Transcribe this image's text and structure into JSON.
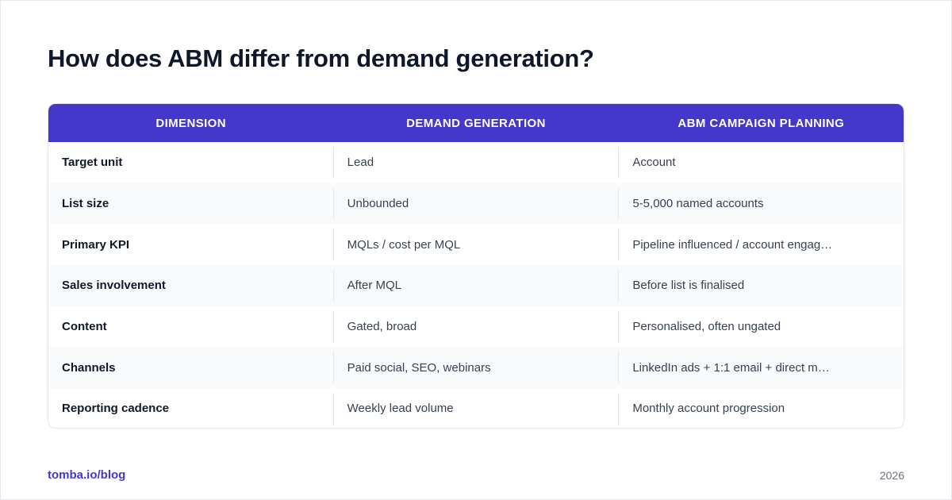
{
  "title": "How does ABM differ from demand generation?",
  "table": {
    "headers": [
      "DIMENSION",
      "DEMAND GENERATION",
      "ABM CAMPAIGN PLANNING"
    ],
    "rows": [
      [
        "Target unit",
        "Lead",
        "Account"
      ],
      [
        "List size",
        "Unbounded",
        "5-5,000 named accounts"
      ],
      [
        "Primary KPI",
        "MQLs / cost per MQL",
        "Pipeline influenced / account engag…"
      ],
      [
        "Sales involvement",
        "After MQL",
        "Before list is finalised"
      ],
      [
        "Content",
        "Gated, broad",
        "Personalised, often ungated"
      ],
      [
        "Channels",
        "Paid social, SEO, webinars",
        "LinkedIn ads + 1:1 email + direct m…"
      ],
      [
        "Reporting cadence",
        "Weekly lead volume",
        "Monthly account progression"
      ]
    ]
  },
  "footer": {
    "source": "tomba.io/blog",
    "year": "2026"
  },
  "colors": {
    "accent": "#4338ca",
    "alt_row": "#f8fafc"
  }
}
